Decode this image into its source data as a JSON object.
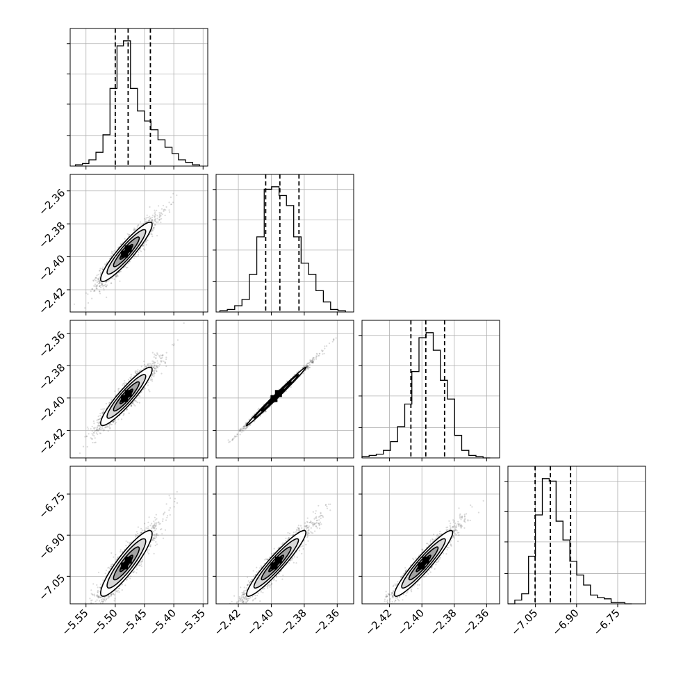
{
  "figure": {
    "type": "corner-plot",
    "n_params": 4,
    "grid": true
  },
  "colors": {
    "frame": "#000000",
    "grid": "#b0b0b0",
    "hist": "#000000",
    "quantile_line": "#000000",
    "scatter": "#555555",
    "contour": "#000000"
  },
  "chart_data": {
    "type": "corner",
    "params": [
      {
        "ticks": [
          -5.55,
          -5.5,
          -5.45,
          -5.4,
          -5.35
        ],
        "tick_labels": [
          "−5.55",
          "−5.50",
          "−5.45",
          "−5.40",
          "−5.35"
        ],
        "range": [
          -5.577,
          -5.342
        ],
        "quantiles": [
          -5.5,
          -5.478,
          -5.44
        ],
        "hist_bins": [
          -5.568,
          -5.556,
          -5.545,
          -5.533,
          -5.521,
          -5.509,
          -5.497,
          -5.486,
          -5.474,
          -5.462,
          -5.45,
          -5.439,
          -5.427,
          -5.415,
          -5.403,
          -5.392,
          -5.38,
          -5.368,
          -5.356
        ],
        "hist_counts": [
          0.01,
          0.02,
          0.05,
          0.11,
          0.25,
          0.62,
          0.96,
          1.0,
          0.62,
          0.44,
          0.36,
          0.29,
          0.21,
          0.15,
          0.1,
          0.05,
          0.03,
          0.01,
          0.0
        ]
      },
      {
        "ticks": [
          -2.42,
          -2.4,
          -2.38,
          -2.36
        ],
        "tick_labels": [
          "−2.42",
          "−2.40",
          "−2.38",
          "−2.36"
        ],
        "range": [
          -2.4335,
          -2.35
        ],
        "quantiles": [
          -2.4034,
          -2.3948,
          -2.3832
        ],
        "hist_bins": [
          -2.4312,
          -2.4267,
          -2.4222,
          -2.4178,
          -2.4133,
          -2.4088,
          -2.4043,
          -2.3998,
          -2.3953,
          -2.3908,
          -2.3864,
          -2.3819,
          -2.3774,
          -2.3729,
          -2.3684,
          -2.364,
          -2.3595,
          -2.355
        ],
        "hist_counts": [
          0.01,
          0.02,
          0.05,
          0.1,
          0.3,
          0.6,
          0.98,
          1.0,
          0.93,
          0.85,
          0.6,
          0.39,
          0.3,
          0.17,
          0.08,
          0.02,
          0.01
        ]
      },
      {
        "ticks": [
          -2.42,
          -2.4,
          -2.38,
          -2.36
        ],
        "tick_labels": [
          "−2.42",
          "−2.40",
          "−2.38",
          "−2.36"
        ],
        "range": [
          -2.437,
          -2.352
        ],
        "quantiles": [
          -2.4068,
          -2.3976,
          -2.386
        ],
        "hist_bins": [
          -2.437,
          -2.4326,
          -2.4282,
          -2.4238,
          -2.4194,
          -2.415,
          -2.4106,
          -2.4062,
          -2.4018,
          -2.3974,
          -2.393,
          -2.3886,
          -2.3842,
          -2.3798,
          -2.3754,
          -2.371,
          -2.3666,
          -2.3622,
          -2.3578
        ],
        "hist_counts": [
          0.01,
          0.02,
          0.03,
          0.06,
          0.13,
          0.25,
          0.43,
          0.69,
          0.96,
          1.0,
          0.86,
          0.62,
          0.47,
          0.18,
          0.06,
          0.02,
          0.01,
          0.0
        ]
      },
      {
        "ticks": [
          -7.05,
          -6.9,
          -6.75
        ],
        "tick_labels": [
          "−7.05",
          "−6.90",
          "−6.75"
        ],
        "range": [
          -7.1505,
          -6.6485
        ],
        "quantiles": [
          -7.0514,
          -6.9958,
          -6.9219
        ],
        "hist_bins": [
          -7.1505,
          -7.1254,
          -7.1003,
          -7.0752,
          -7.0501,
          -7.025,
          -6.9999,
          -6.9748,
          -6.9497,
          -6.9246,
          -6.8995,
          -6.8744,
          -6.8493,
          -6.8242,
          -6.7991,
          -6.774,
          -6.7489,
          -6.7238,
          -6.6987
        ],
        "hist_counts": [
          0.0,
          0.03,
          0.08,
          0.38,
          0.71,
          1.0,
          0.98,
          0.66,
          0.51,
          0.34,
          0.23,
          0.15,
          0.07,
          0.05,
          0.04,
          0.01,
          0.01,
          0.0
        ]
      }
    ],
    "pairs": [
      {
        "x": 0,
        "y": 1,
        "center": [
          -5.481,
          -2.397
        ],
        "sd": [
          0.022,
          0.009
        ],
        "rho": 0.92
      },
      {
        "x": 0,
        "y": 2,
        "center": [
          -5.481,
          -2.399
        ],
        "sd": [
          0.022,
          0.009
        ],
        "rho": 0.92
      },
      {
        "x": 1,
        "y": 2,
        "center": [
          -2.397,
          -2.399
        ],
        "sd": [
          0.009,
          0.009
        ],
        "rho": 0.995
      },
      {
        "x": 0,
        "y": 3,
        "center": [
          -5.481,
          -7.003
        ],
        "sd": [
          0.022,
          0.06
        ],
        "rho": 0.9
      },
      {
        "x": 1,
        "y": 3,
        "center": [
          -2.397,
          -7.003
        ],
        "sd": [
          0.009,
          0.06
        ],
        "rho": 0.94
      },
      {
        "x": 2,
        "y": 3,
        "center": [
          -2.399,
          -7.003
        ],
        "sd": [
          0.009,
          0.06
        ],
        "rho": 0.94
      }
    ],
    "contour_levels_sigma": [
      0.5,
      1.0,
      1.5,
      2.0
    ],
    "n_samples_per_panel": 2200
  }
}
